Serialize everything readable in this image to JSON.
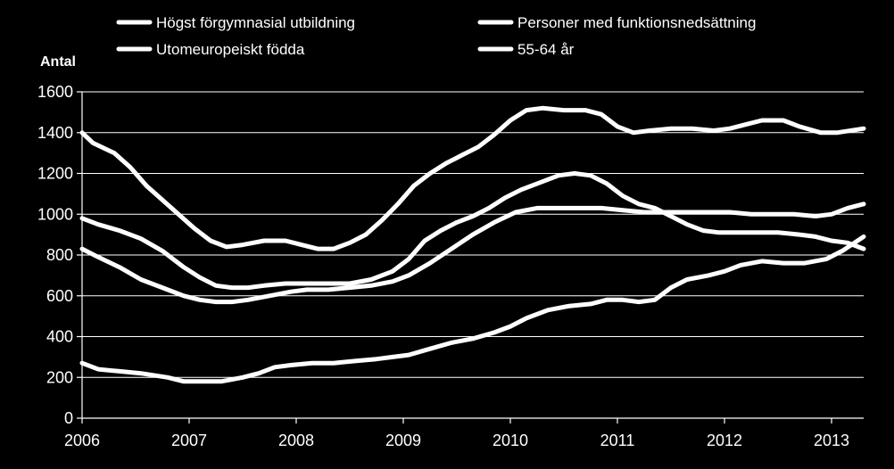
{
  "chart_data": {
    "type": "line",
    "ylabel": "Antal",
    "ylim": [
      0,
      1600
    ],
    "yticks": [
      0,
      200,
      400,
      600,
      800,
      1000,
      1200,
      1400,
      1600
    ],
    "xlim": [
      2006,
      2013.3
    ],
    "xticks": [
      2006,
      2007,
      2008,
      2009,
      2010,
      2011,
      2012,
      2013
    ],
    "grid": true,
    "legend_position": "top",
    "colors": {
      "background": "#000000",
      "line": "#ffffff",
      "grid": "#ffffff",
      "text": "#ffffff"
    },
    "series": [
      {
        "name": "Högst förgymnasial utbildning",
        "points": [
          [
            2006,
            1400
          ],
          [
            2006.1,
            1350
          ],
          [
            2006.3,
            1300
          ],
          [
            2006.45,
            1230
          ],
          [
            2006.6,
            1140
          ],
          [
            2006.75,
            1070
          ],
          [
            2006.9,
            1000
          ],
          [
            2007.05,
            930
          ],
          [
            2007.2,
            870
          ],
          [
            2007.35,
            840
          ],
          [
            2007.5,
            850
          ],
          [
            2007.7,
            870
          ],
          [
            2007.9,
            870
          ],
          [
            2008.05,
            850
          ],
          [
            2008.2,
            830
          ],
          [
            2008.35,
            830
          ],
          [
            2008.5,
            860
          ],
          [
            2008.65,
            900
          ],
          [
            2008.8,
            970
          ],
          [
            2008.95,
            1050
          ],
          [
            2009.1,
            1140
          ],
          [
            2009.25,
            1200
          ],
          [
            2009.4,
            1250
          ],
          [
            2009.55,
            1290
          ],
          [
            2009.7,
            1330
          ],
          [
            2009.85,
            1390
          ],
          [
            2010.0,
            1460
          ],
          [
            2010.15,
            1510
          ],
          [
            2010.3,
            1520
          ],
          [
            2010.5,
            1510
          ],
          [
            2010.7,
            1510
          ],
          [
            2010.85,
            1490
          ],
          [
            2011.0,
            1430
          ],
          [
            2011.15,
            1400
          ],
          [
            2011.3,
            1410
          ],
          [
            2011.5,
            1420
          ],
          [
            2011.7,
            1420
          ],
          [
            2011.9,
            1410
          ],
          [
            2012.05,
            1420
          ],
          [
            2012.2,
            1440
          ],
          [
            2012.35,
            1460
          ],
          [
            2012.55,
            1460
          ],
          [
            2012.7,
            1430
          ],
          [
            2012.9,
            1400
          ],
          [
            2013.05,
            1400
          ],
          [
            2013.3,
            1420
          ]
        ]
      },
      {
        "name": "Personer med funktionsnedsättning",
        "points": [
          [
            2006,
            980
          ],
          [
            2006.15,
            950
          ],
          [
            2006.35,
            920
          ],
          [
            2006.55,
            880
          ],
          [
            2006.75,
            820
          ],
          [
            2006.95,
            740
          ],
          [
            2007.1,
            690
          ],
          [
            2007.25,
            650
          ],
          [
            2007.4,
            640
          ],
          [
            2007.55,
            640
          ],
          [
            2007.7,
            650
          ],
          [
            2007.9,
            660
          ],
          [
            2008.1,
            660
          ],
          [
            2008.3,
            660
          ],
          [
            2008.5,
            660
          ],
          [
            2008.7,
            680
          ],
          [
            2008.9,
            720
          ],
          [
            2009.05,
            780
          ],
          [
            2009.2,
            870
          ],
          [
            2009.35,
            920
          ],
          [
            2009.5,
            960
          ],
          [
            2009.65,
            990
          ],
          [
            2009.8,
            1030
          ],
          [
            2009.95,
            1080
          ],
          [
            2010.1,
            1120
          ],
          [
            2010.3,
            1160
          ],
          [
            2010.45,
            1190
          ],
          [
            2010.6,
            1200
          ],
          [
            2010.75,
            1190
          ],
          [
            2010.9,
            1150
          ],
          [
            2011.05,
            1090
          ],
          [
            2011.2,
            1050
          ],
          [
            2011.35,
            1030
          ],
          [
            2011.5,
            990
          ],
          [
            2011.65,
            950
          ],
          [
            2011.8,
            920
          ],
          [
            2011.95,
            910
          ],
          [
            2012.1,
            910
          ],
          [
            2012.3,
            910
          ],
          [
            2012.5,
            910
          ],
          [
            2012.7,
            900
          ],
          [
            2012.85,
            890
          ],
          [
            2013.0,
            870
          ],
          [
            2013.15,
            860
          ],
          [
            2013.3,
            830
          ]
        ]
      },
      {
        "name": "Utomeuropeiskt födda",
        "points": [
          [
            2006,
            830
          ],
          [
            2006.15,
            790
          ],
          [
            2006.35,
            740
          ],
          [
            2006.55,
            680
          ],
          [
            2006.75,
            640
          ],
          [
            2006.95,
            600
          ],
          [
            2007.1,
            580
          ],
          [
            2007.25,
            570
          ],
          [
            2007.4,
            570
          ],
          [
            2007.55,
            580
          ],
          [
            2007.75,
            600
          ],
          [
            2007.95,
            620
          ],
          [
            2008.1,
            630
          ],
          [
            2008.3,
            630
          ],
          [
            2008.5,
            640
          ],
          [
            2008.7,
            650
          ],
          [
            2008.9,
            670
          ],
          [
            2009.05,
            700
          ],
          [
            2009.25,
            760
          ],
          [
            2009.45,
            830
          ],
          [
            2009.65,
            900
          ],
          [
            2009.85,
            960
          ],
          [
            2010.05,
            1010
          ],
          [
            2010.25,
            1030
          ],
          [
            2010.45,
            1030
          ],
          [
            2010.65,
            1030
          ],
          [
            2010.85,
            1030
          ],
          [
            2011.05,
            1020
          ],
          [
            2011.25,
            1010
          ],
          [
            2011.45,
            1010
          ],
          [
            2011.65,
            1010
          ],
          [
            2011.85,
            1010
          ],
          [
            2012.05,
            1010
          ],
          [
            2012.25,
            1000
          ],
          [
            2012.45,
            1000
          ],
          [
            2012.65,
            1000
          ],
          [
            2012.85,
            990
          ],
          [
            2013.0,
            1000
          ],
          [
            2013.15,
            1030
          ],
          [
            2013.3,
            1050
          ]
        ]
      },
      {
        "name": "55-64 år",
        "points": [
          [
            2006,
            270
          ],
          [
            2006.15,
            240
          ],
          [
            2006.35,
            230
          ],
          [
            2006.55,
            220
          ],
          [
            2006.8,
            200
          ],
          [
            2006.95,
            180
          ],
          [
            2007.1,
            180
          ],
          [
            2007.3,
            180
          ],
          [
            2007.5,
            200
          ],
          [
            2007.65,
            220
          ],
          [
            2007.8,
            250
          ],
          [
            2007.95,
            260
          ],
          [
            2008.15,
            270
          ],
          [
            2008.35,
            270
          ],
          [
            2008.55,
            280
          ],
          [
            2008.75,
            290
          ],
          [
            2008.9,
            300
          ],
          [
            2009.05,
            310
          ],
          [
            2009.25,
            340
          ],
          [
            2009.45,
            370
          ],
          [
            2009.65,
            390
          ],
          [
            2009.85,
            420
          ],
          [
            2010.0,
            450
          ],
          [
            2010.15,
            490
          ],
          [
            2010.35,
            530
          ],
          [
            2010.55,
            550
          ],
          [
            2010.75,
            560
          ],
          [
            2010.9,
            580
          ],
          [
            2011.05,
            580
          ],
          [
            2011.2,
            570
          ],
          [
            2011.35,
            580
          ],
          [
            2011.5,
            640
          ],
          [
            2011.65,
            680
          ],
          [
            2011.85,
            700
          ],
          [
            2012.0,
            720
          ],
          [
            2012.15,
            750
          ],
          [
            2012.35,
            770
          ],
          [
            2012.55,
            760
          ],
          [
            2012.75,
            760
          ],
          [
            2012.95,
            780
          ],
          [
            2013.1,
            820
          ],
          [
            2013.3,
            890
          ]
        ]
      }
    ]
  }
}
